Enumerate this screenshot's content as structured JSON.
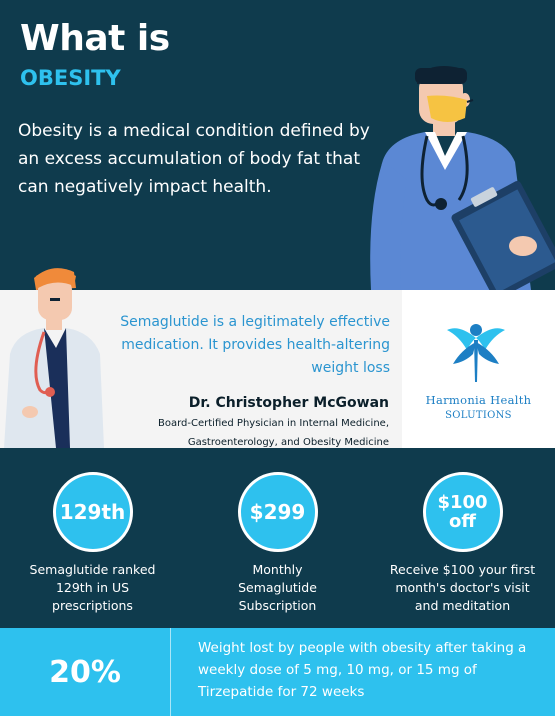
{
  "hero": {
    "title": "What is",
    "subtitle": "OBESITY",
    "description": "Obesity is a medical condition defined by an excess accumulation of body fat that can negatively impact health."
  },
  "quote": {
    "text": "Semaglutide is a legitimately effective medication. It provides health-altering weight loss",
    "author": "Dr. Christopher McGowan",
    "credential": "Board-Certified Physician in Internal Medicine, Gastroenterology, and Obesity Medicine"
  },
  "logo": {
    "line1": "Harmonia Health",
    "line2": "SOLUTIONS"
  },
  "stats": [
    {
      "value": "129th",
      "label": "Semaglutide ranked 129th in US prescriptions"
    },
    {
      "value": "$299",
      "label": "Monthly Semaglutide Subscription"
    },
    {
      "value": "$100 off",
      "label": "Receive $100 your first month's doctor's visit and meditation"
    }
  ],
  "footer": {
    "value": "20%",
    "text": "Weight lost by people with obesity after taking a weekly dose of 5 mg, 10 mg, or 15 mg of Tirzepatide for 72 weeks"
  },
  "colors": {
    "navy": "#0f3b4d",
    "cyan": "#2ec1ee",
    "quote_blue": "#2b95d0",
    "light_band": "#f4f4f4"
  },
  "icons": [
    "doctor-illustration",
    "doctor-illustration-small",
    "harmonia-health-logo"
  ]
}
